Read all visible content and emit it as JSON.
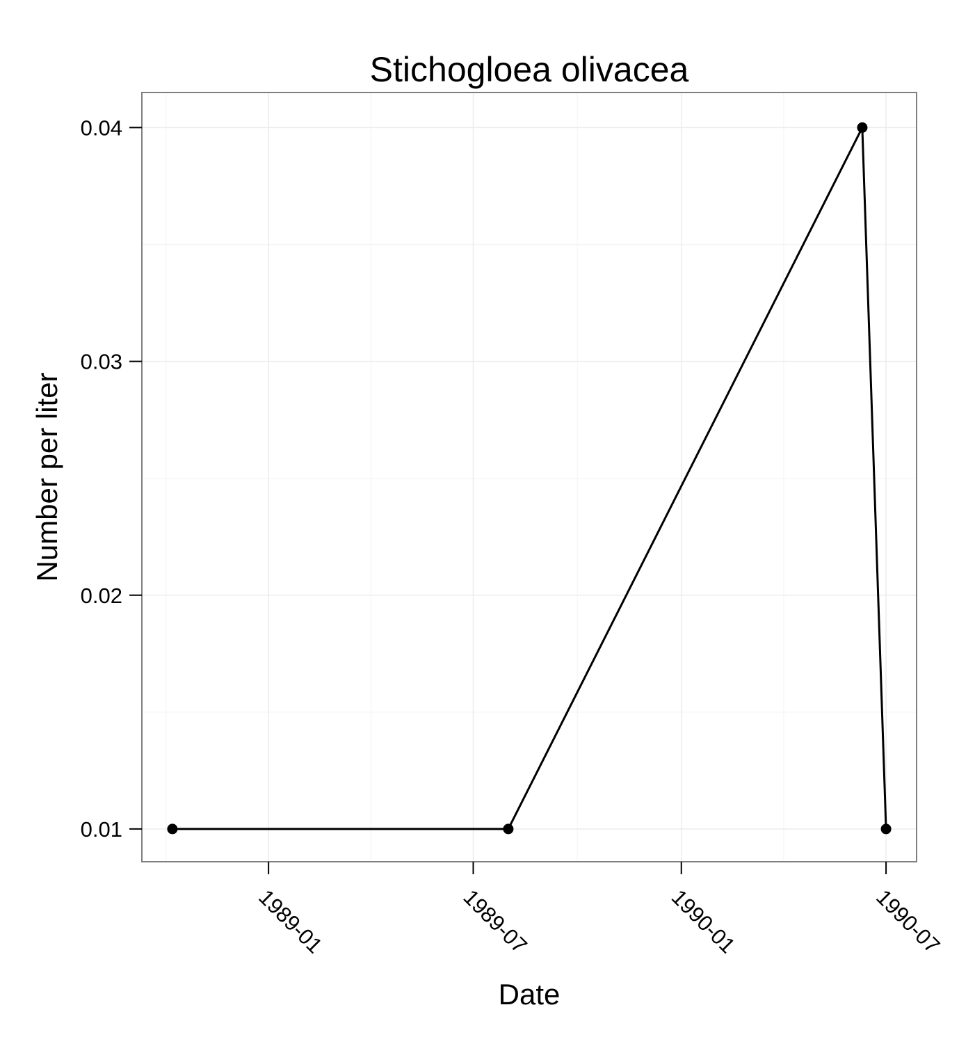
{
  "chart_data": {
    "type": "line",
    "title": "Stichogloea olivacea",
    "xlabel": "Date",
    "ylabel": "Number per liter",
    "x_axis_type": "date",
    "x_ticks": [
      "1989-01",
      "1989-07",
      "1990-01",
      "1990-07"
    ],
    "y_ticks": [
      "0.01",
      "0.02",
      "0.03",
      "0.04"
    ],
    "xlim": [
      "1988-09-11",
      "1990-07-28"
    ],
    "ylim": [
      0.0086,
      0.0415
    ],
    "grid": true,
    "series": [
      {
        "x": [
          "1988-10-08",
          "1989-08-01",
          "1990-06-10",
          "1990-07-01"
        ],
        "y": [
          0.01,
          0.01,
          0.04,
          0.01
        ],
        "color": "#000000",
        "marker": "circle"
      }
    ]
  },
  "colors": {
    "background": "#ffffff",
    "panel_border": "#7f7f7f",
    "grid_major": "#ebebeb",
    "grid_minor": "#f5f5f5",
    "line": "#000000"
  }
}
